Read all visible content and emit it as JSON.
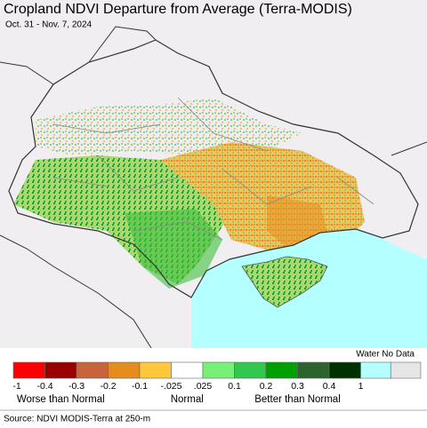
{
  "header": {
    "title": "Cropland NDVI Departure from Average (Terra-MODIS)",
    "subtitle": "Oct. 31 - Nov. 7, 2024"
  },
  "legend": {
    "colors": [
      "#ff0000",
      "#990000",
      "#c8643c",
      "#e68c1e",
      "#ffc83c",
      "#ffffff",
      "#78f078",
      "#32c850",
      "#00a000",
      "#2d642d",
      "#003200"
    ],
    "labels": [
      "-1",
      "-0.4",
      "-0.3",
      "-0.2",
      "-0.1",
      "-.025",
      ".025",
      "0.1",
      "0.2",
      "0.3",
      "0.4",
      "1"
    ],
    "groups": [
      "Worse than Normal",
      "Normal",
      "Better than Normal"
    ],
    "extra_colors": [
      "#b4ffff",
      "#e6e6e6"
    ],
    "extra_label": "Water No Data"
  },
  "footer": {
    "source": "Source: NDVI MODIS-Terra at 250-m"
  }
}
